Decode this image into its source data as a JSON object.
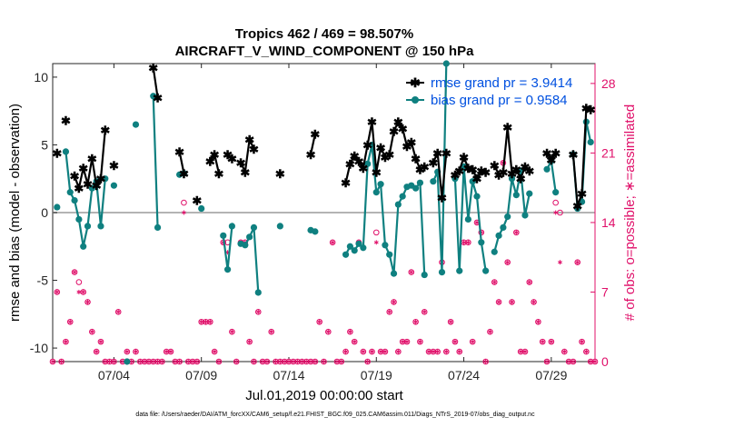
{
  "chart_data": {
    "type": "line",
    "title_line1": "Tropics 462 / 469 = 98.507%",
    "title_line2": "AIRCRAFT_V_WIND_COMPONENT @ 150 hPa",
    "xlabel": "Jul.01,2019 00:00:00 start",
    "ylabel_left": "rmse and bias (model - observation)",
    "ylabel_right": "# of obs: o=possible; ∗=assimilated",
    "footnote": "data file: /Users/raeder/DAI/ATM_forcXX/CAM6_setup/f.e21.FHIST_BGC.f09_025.CAM6assim.011/Diags_NTrS_2019-07/obs_diag_output.nc",
    "xlim": [
      0.5,
      31.5
    ],
    "ylim_left": [
      -11,
      11
    ],
    "ylim_right": [
      0,
      30
    ],
    "x_ticks": [
      4,
      9,
      14,
      19,
      24,
      29
    ],
    "x_tick_labels": [
      "07/04",
      "07/09",
      "07/14",
      "07/19",
      "07/24",
      "07/29"
    ],
    "y_left_ticks": [
      -10,
      -5,
      0,
      5,
      10
    ],
    "y_left_tick_labels": [
      "-10",
      "-5",
      "0",
      "5",
      "10"
    ],
    "y_right_ticks": [
      0,
      7,
      14,
      21,
      28
    ],
    "y_right_tick_labels": [
      "0",
      "7",
      "14",
      "21",
      "28"
    ],
    "zero_line": 0,
    "colors": {
      "rmse": "#000000",
      "bias": "#0f8080",
      "obs": "#e0106a",
      "zero": "#b4b4b4"
    },
    "series": [
      {
        "name": "rmse",
        "legend": "rmse grand pr = 3.9414",
        "points": [
          [
            0.75,
            4.4
          ],
          [
            1.25,
            6.8
          ],
          [
            1.75,
            2.7
          ],
          [
            2.0,
            1.8
          ],
          [
            2.25,
            3.3
          ],
          [
            2.5,
            2.1
          ],
          [
            2.75,
            4.0
          ],
          [
            3.0,
            2.0
          ],
          [
            3.25,
            2.5
          ],
          [
            3.5,
            6.1
          ],
          [
            4.0,
            3.5
          ],
          [
            6.25,
            10.7
          ],
          [
            6.5,
            8.5
          ],
          [
            7.75,
            4.5
          ],
          [
            8.0,
            2.9
          ],
          [
            8.75,
            0.9
          ],
          [
            9.5,
            3.8
          ],
          [
            9.75,
            4.3
          ],
          [
            10.0,
            2.9
          ],
          [
            10.5,
            4.3
          ],
          [
            10.75,
            4.0
          ],
          [
            11.25,
            3.7
          ],
          [
            11.5,
            3.0
          ],
          [
            11.75,
            5.4
          ],
          [
            12.0,
            4.7
          ],
          [
            13.5,
            2.9
          ],
          [
            15.25,
            4.3
          ],
          [
            15.5,
            5.8
          ],
          [
            17.25,
            2.2
          ],
          [
            17.5,
            3.6
          ],
          [
            17.75,
            4.2
          ],
          [
            18.0,
            3.8
          ],
          [
            18.25,
            3.3
          ],
          [
            18.5,
            5.0
          ],
          [
            18.75,
            6.7
          ],
          [
            19.0,
            3.0
          ],
          [
            19.25,
            4.8
          ],
          [
            19.5,
            4.1
          ],
          [
            19.75,
            4.3
          ],
          [
            20.0,
            6.0
          ],
          [
            20.25,
            6.7
          ],
          [
            20.5,
            6.2
          ],
          [
            20.75,
            4.9
          ],
          [
            21.0,
            5.2
          ],
          [
            21.25,
            4.0
          ],
          [
            21.5,
            3.2
          ],
          [
            21.75,
            3.4
          ],
          [
            22.25,
            3.7
          ],
          [
            22.5,
            4.4
          ],
          [
            22.75,
            1.1
          ],
          [
            23.0,
            4.4
          ],
          [
            23.5,
            2.8
          ],
          [
            23.75,
            3.1
          ],
          [
            24.0,
            4.1
          ],
          [
            24.25,
            3.3
          ],
          [
            24.5,
            3.2
          ],
          [
            24.75,
            2.5
          ],
          [
            25.0,
            3.1
          ],
          [
            25.25,
            3.0
          ],
          [
            25.75,
            3.5
          ],
          [
            26.0,
            2.8
          ],
          [
            26.25,
            3.0
          ],
          [
            26.5,
            6.3
          ],
          [
            26.75,
            2.9
          ],
          [
            27.0,
            3.2
          ],
          [
            27.25,
            2.5
          ],
          [
            27.5,
            3.4
          ],
          [
            27.75,
            3.1
          ],
          [
            28.75,
            4.4
          ],
          [
            29.0,
            3.9
          ],
          [
            29.25,
            4.4
          ],
          [
            30.25,
            4.3
          ],
          [
            30.5,
            0.5
          ],
          [
            30.75,
            1.4
          ],
          [
            31.0,
            7.7
          ],
          [
            31.25,
            7.6
          ]
        ]
      },
      {
        "name": "bias",
        "legend": "bias grand pr = 0.9584",
        "points": [
          [
            0.75,
            0.4
          ],
          [
            1.25,
            4.5
          ],
          [
            1.5,
            1.5
          ],
          [
            1.75,
            0.9
          ],
          [
            2.0,
            -0.5
          ],
          [
            2.25,
            -2.5
          ],
          [
            2.5,
            -1.0
          ],
          [
            2.75,
            1.8
          ],
          [
            3.0,
            2.3
          ],
          [
            3.25,
            -1.0
          ],
          [
            3.5,
            2.5
          ],
          [
            4.0,
            2.0
          ],
          [
            4.75,
            -11.0
          ],
          [
            5.25,
            6.5
          ],
          [
            6.25,
            8.6
          ],
          [
            6.5,
            -1.1
          ],
          [
            7.75,
            2.8
          ],
          [
            8.0,
            2.9
          ],
          [
            9.0,
            0.3
          ],
          [
            10.25,
            -1.7
          ],
          [
            10.5,
            -4.2
          ],
          [
            10.75,
            -1.0
          ],
          [
            11.25,
            -2.3
          ],
          [
            11.5,
            -2.4
          ],
          [
            11.75,
            -1.8
          ],
          [
            12.0,
            -1.1
          ],
          [
            12.25,
            -5.9
          ],
          [
            13.5,
            -1.0
          ],
          [
            15.25,
            -1.3
          ],
          [
            15.5,
            -1.4
          ],
          [
            17.25,
            -3.1
          ],
          [
            17.5,
            -2.5
          ],
          [
            17.75,
            -2.8
          ],
          [
            18.0,
            -2.3
          ],
          [
            18.25,
            -2.6
          ],
          [
            18.5,
            3.6
          ],
          [
            18.75,
            5.0
          ],
          [
            19.0,
            1.5
          ],
          [
            19.25,
            2.1
          ],
          [
            19.5,
            -2.4
          ],
          [
            19.75,
            -3.1
          ],
          [
            20.0,
            -4.5
          ],
          [
            20.25,
            0.6
          ],
          [
            20.5,
            1.2
          ],
          [
            20.75,
            1.9
          ],
          [
            21.0,
            2.0
          ],
          [
            21.25,
            1.8
          ],
          [
            21.5,
            2.2
          ],
          [
            21.75,
            -4.6
          ],
          [
            22.25,
            2.3
          ],
          [
            22.5,
            3.0
          ],
          [
            22.75,
            -4.4
          ],
          [
            23.0,
            11.0
          ],
          [
            23.5,
            2.5
          ],
          [
            23.75,
            -4.3
          ],
          [
            24.0,
            3.4
          ],
          [
            24.25,
            -0.5
          ],
          [
            24.5,
            2.3
          ],
          [
            24.75,
            1.2
          ],
          [
            25.0,
            -2.2
          ],
          [
            25.25,
            -4.3
          ],
          [
            25.75,
            -2.9
          ],
          [
            26.0,
            -1.7
          ],
          [
            26.25,
            -1.1
          ],
          [
            26.5,
            -0.3
          ],
          [
            26.75,
            2.5
          ],
          [
            27.0,
            1.3
          ],
          [
            27.25,
            3.1
          ],
          [
            27.5,
            -0.2
          ],
          [
            27.75,
            1.4
          ],
          [
            28.75,
            3.2
          ],
          [
            29.0,
            3.8
          ],
          [
            29.25,
            1.5
          ],
          [
            30.25,
            4.3
          ],
          [
            30.5,
            0.3
          ],
          [
            30.75,
            0.8
          ],
          [
            31.0,
            6.7
          ],
          [
            31.25,
            5.2
          ]
        ]
      },
      {
        "name": "obs_possible",
        "legend": "o=possible",
        "x": [
          0.5,
          0.75,
          1.0,
          1.25,
          1.5,
          1.75,
          2.0,
          2.25,
          2.5,
          2.75,
          3.0,
          3.25,
          3.5,
          3.75,
          4.0,
          4.25,
          4.5,
          4.75,
          5.0,
          5.25,
          5.5,
          5.75,
          6.0,
          6.25,
          6.5,
          6.75,
          7.0,
          7.25,
          7.5,
          7.75,
          8.0,
          8.25,
          8.5,
          8.75,
          9.0,
          9.25,
          9.5,
          9.75,
          10.0,
          10.25,
          10.5,
          10.75,
          11.0,
          11.25,
          11.5,
          11.75,
          12.0,
          12.25,
          12.5,
          12.75,
          13.0,
          13.25,
          13.5,
          13.75,
          14.0,
          14.25,
          14.5,
          14.75,
          15.0,
          15.25,
          15.5,
          15.75,
          16.0,
          16.25,
          16.5,
          16.75,
          17.0,
          17.25,
          17.5,
          17.75,
          18.0,
          18.25,
          18.5,
          18.75,
          19.0,
          19.25,
          19.5,
          19.75,
          20.0,
          20.25,
          20.5,
          20.75,
          21.0,
          21.25,
          21.5,
          21.75,
          22.0,
          22.25,
          22.5,
          22.75,
          23.0,
          23.25,
          23.5,
          23.75,
          24.0,
          24.25,
          24.5,
          24.75,
          25.0,
          25.25,
          25.5,
          25.75,
          26.0,
          26.25,
          26.5,
          26.75,
          27.0,
          27.25,
          27.5,
          27.75,
          28.0,
          28.25,
          28.5,
          28.75,
          29.0,
          29.25,
          29.5,
          29.75,
          30.0,
          30.25,
          30.5,
          30.75,
          31.0,
          31.25,
          31.5
        ],
        "values": [
          0,
          7,
          0,
          2,
          4,
          9,
          8,
          7,
          6,
          3,
          1,
          2,
          0,
          0,
          0,
          5,
          0,
          1,
          0,
          1,
          0,
          0,
          0,
          0,
          0,
          0,
          1,
          1,
          0,
          0,
          16,
          0,
          0,
          0,
          4,
          4,
          4,
          1,
          0,
          12,
          12,
          3,
          0,
          12,
          12,
          2,
          0,
          5,
          0,
          0,
          3,
          0,
          0,
          0,
          0,
          0,
          0,
          0,
          0,
          0,
          0,
          4,
          0,
          3,
          12,
          0,
          0,
          1,
          3,
          2,
          12,
          1,
          0,
          1,
          13,
          1,
          1,
          5,
          6,
          1,
          2,
          2,
          9,
          4,
          2,
          5,
          1,
          1,
          1,
          10,
          1,
          4,
          2,
          1,
          12,
          12,
          2,
          14,
          13,
          0,
          3,
          8,
          6,
          20,
          10,
          6,
          13,
          1,
          1,
          8,
          6,
          4,
          2,
          0,
          2,
          16,
          15,
          1,
          0,
          0,
          10,
          2,
          1,
          0,
          0
        ]
      },
      {
        "name": "obs_assimilated",
        "legend": "∗=assimilated",
        "x": [
          0.5,
          0.75,
          1.0,
          1.25,
          1.5,
          1.75,
          2.0,
          2.25,
          2.5,
          2.75,
          3.0,
          3.25,
          3.5,
          3.75,
          4.0,
          4.25,
          4.5,
          4.75,
          5.0,
          5.25,
          5.5,
          5.75,
          6.0,
          6.25,
          6.5,
          6.75,
          7.0,
          7.25,
          7.5,
          7.75,
          8.0,
          8.25,
          8.5,
          8.75,
          9.0,
          9.25,
          9.5,
          9.75,
          10.0,
          10.25,
          10.5,
          10.75,
          11.0,
          11.25,
          11.5,
          11.75,
          12.0,
          12.25,
          12.5,
          12.75,
          13.0,
          13.25,
          13.5,
          13.75,
          14.0,
          14.25,
          14.5,
          14.75,
          15.0,
          15.25,
          15.5,
          15.75,
          16.0,
          16.25,
          16.5,
          16.75,
          17.0,
          17.25,
          17.5,
          17.75,
          18.0,
          18.25,
          18.5,
          18.75,
          19.0,
          19.25,
          19.5,
          19.75,
          20.0,
          20.25,
          20.5,
          20.75,
          21.0,
          21.25,
          21.5,
          21.75,
          22.0,
          22.25,
          22.5,
          22.75,
          23.0,
          23.25,
          23.5,
          23.75,
          24.0,
          24.25,
          24.5,
          24.75,
          25.0,
          25.25,
          25.5,
          25.75,
          26.0,
          26.25,
          26.5,
          26.75,
          27.0,
          27.25,
          27.5,
          27.75,
          28.0,
          28.25,
          28.5,
          28.75,
          29.0,
          29.25,
          29.5,
          29.75,
          30.0,
          30.25,
          30.5,
          30.75,
          31.0,
          31.25,
          31.5
        ],
        "values": [
          0,
          7,
          0,
          2,
          4,
          9,
          7,
          7,
          6,
          3,
          1,
          2,
          0,
          0,
          0,
          5,
          0,
          1,
          0,
          1,
          0,
          0,
          0,
          0,
          0,
          0,
          1,
          1,
          0,
          0,
          15,
          0,
          0,
          0,
          4,
          4,
          4,
          1,
          0,
          12,
          11,
          3,
          0,
          12,
          12,
          2,
          0,
          5,
          0,
          0,
          3,
          0,
          0,
          0,
          0,
          0,
          0,
          0,
          0,
          0,
          0,
          4,
          0,
          3,
          12,
          0,
          0,
          1,
          3,
          2,
          12,
          1,
          0,
          1,
          12,
          1,
          1,
          5,
          6,
          1,
          2,
          2,
          9,
          4,
          2,
          5,
          1,
          1,
          1,
          10,
          1,
          4,
          2,
          1,
          12,
          12,
          2,
          14,
          13,
          0,
          3,
          8,
          6,
          20,
          10,
          6,
          13,
          1,
          1,
          8,
          6,
          4,
          2,
          0,
          2,
          15,
          10,
          1,
          0,
          0,
          10,
          2,
          1,
          0,
          0
        ]
      }
    ]
  }
}
